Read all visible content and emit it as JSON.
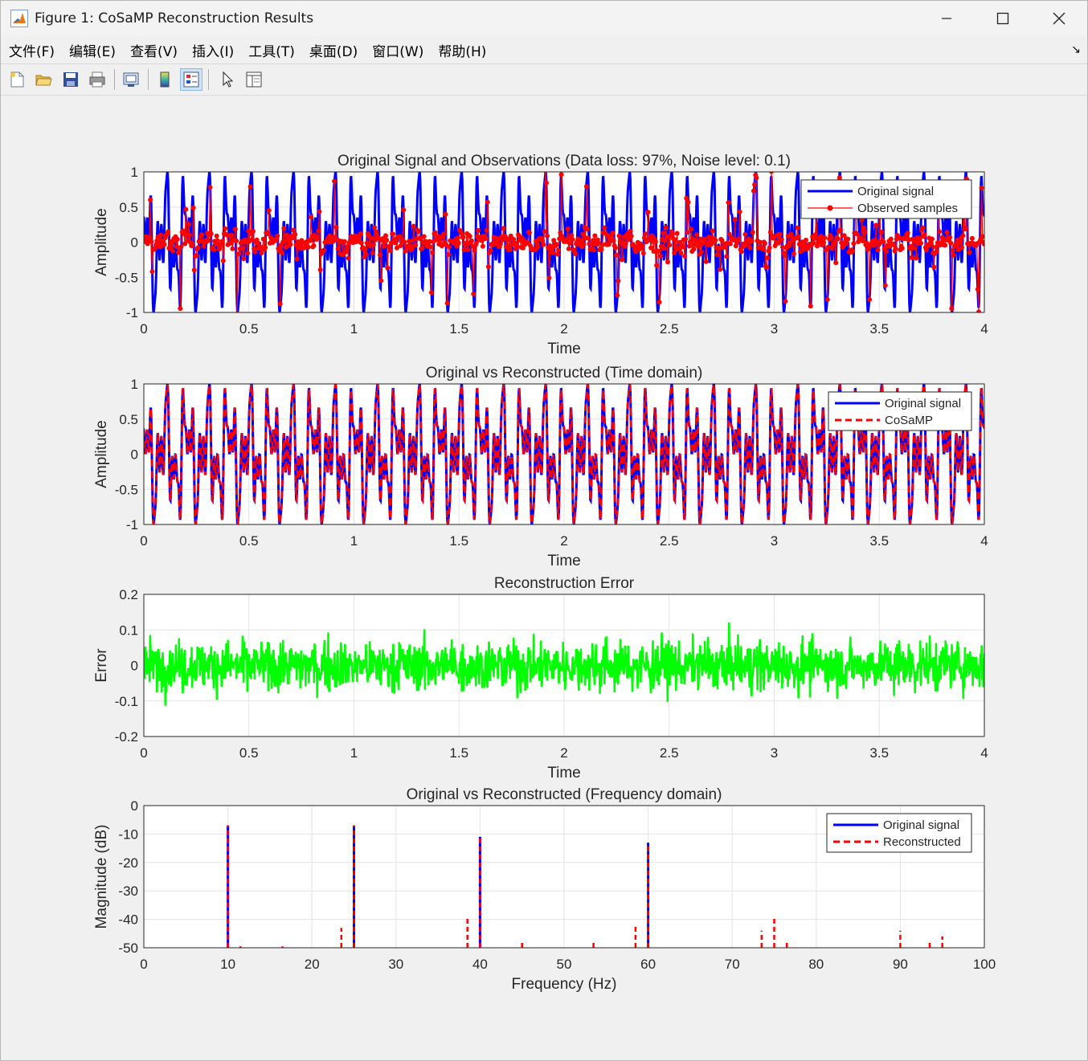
{
  "window": {
    "title": "Figure 1: CoSaMP Reconstruction Results"
  },
  "menu": [
    "文件(F)",
    "编辑(E)",
    "查看(V)",
    "插入(I)",
    "工具(T)",
    "桌面(D)",
    "窗口(W)",
    "帮助(H)"
  ],
  "toolbar": [
    "new-figure-icon",
    "open-file-icon",
    "save-icon",
    "print-icon",
    "link-plot-icon",
    "insert-colorbar-icon",
    "insert-legend-icon",
    "edit-plot-icon",
    "property-inspector-icon"
  ],
  "colors": {
    "original": "#0000ff",
    "observed": "#ff0000",
    "reconstructed": "#ff0000",
    "error": "#00ff00"
  },
  "chart_data": [
    {
      "type": "line",
      "title": "Original Signal and Observations (Data loss: 97%, Noise level: 0.1)",
      "xlabel": "Time",
      "ylabel": "Amplitude",
      "xlim": [
        0,
        4
      ],
      "ylim": [
        -1,
        1
      ],
      "xticks": [
        "0",
        "0.5",
        "1",
        "1.5",
        "2",
        "2.5",
        "3",
        "3.5",
        "4"
      ],
      "yticks": [
        "-1",
        "-0.5",
        "0",
        "0.5",
        "1"
      ],
      "grid": true,
      "legend_position": "top-right",
      "series": [
        {
          "name": "Original signal",
          "color": "#0000ff",
          "style": "solid",
          "components": [
            {
              "freq_hz": 10,
              "amp": 0.45
            },
            {
              "freq_hz": 25,
              "amp": 0.45
            },
            {
              "freq_hz": 40,
              "amp": 0.25
            },
            {
              "freq_hz": 60,
              "amp": 0.2
            }
          ]
        },
        {
          "name": "Observed samples",
          "color": "#ff0000",
          "style": "solid-marker",
          "note_values": "noisy samples of the original signal"
        }
      ]
    },
    {
      "type": "line",
      "title": "Original vs Reconstructed (Time domain)",
      "xlabel": "Time",
      "ylabel": "Amplitude",
      "xlim": [
        0,
        4
      ],
      "ylim": [
        -1,
        1
      ],
      "xticks": [
        "0",
        "0.5",
        "1",
        "1.5",
        "2",
        "2.5",
        "3",
        "3.5",
        "4"
      ],
      "yticks": [
        "-1",
        "-0.5",
        "0",
        "0.5",
        "1"
      ],
      "grid": true,
      "legend_position": "top-right",
      "series": [
        {
          "name": "Original signal",
          "color": "#0000ff",
          "style": "solid"
        },
        {
          "name": "CoSaMP",
          "color": "#ff0000",
          "style": "dashed"
        }
      ]
    },
    {
      "type": "line",
      "title": "Reconstruction Error",
      "xlabel": "Time",
      "ylabel": "Error",
      "xlim": [
        0,
        4
      ],
      "ylim": [
        -0.2,
        0.2
      ],
      "xticks": [
        "0",
        "0.5",
        "1",
        "1.5",
        "2",
        "2.5",
        "3",
        "3.5",
        "4"
      ],
      "yticks": [
        "-0.2",
        "-0.1",
        "0",
        "0.1",
        "0.2"
      ],
      "grid": true,
      "series": [
        {
          "name": "",
          "color": "#00ff00",
          "style": "solid",
          "approx_range": [
            -0.18,
            0.18
          ]
        }
      ]
    },
    {
      "type": "line",
      "title": "Original vs Reconstructed (Frequency domain)",
      "xlabel": "Frequency (Hz)",
      "ylabel": "Magnitude (dB)",
      "xlim": [
        0,
        100
      ],
      "ylim": [
        -50,
        0
      ],
      "xticks": [
        "0",
        "10",
        "20",
        "30",
        "40",
        "50",
        "60",
        "70",
        "80",
        "90",
        "100"
      ],
      "yticks": [
        "-50",
        "-40",
        "-30",
        "-20",
        "-10",
        "0"
      ],
      "grid": true,
      "legend_position": "top-right",
      "series": [
        {
          "name": "Original signal",
          "color": "#0000ff",
          "style": "solid",
          "peaks": [
            {
              "x": 10,
              "y": -7
            },
            {
              "x": 25,
              "y": -7
            },
            {
              "x": 40,
              "y": -11
            },
            {
              "x": 60,
              "y": -13
            }
          ]
        },
        {
          "name": "Reconstructed",
          "color": "#ff0000",
          "style": "dashed",
          "peaks": [
            {
              "x": 10,
              "y": -7
            },
            {
              "x": 25,
              "y": -7
            },
            {
              "x": 40,
              "y": -11
            },
            {
              "x": 60,
              "y": -13
            },
            {
              "x": 23.5,
              "y": -43
            },
            {
              "x": 38.5,
              "y": -39
            },
            {
              "x": 45,
              "y": -48
            },
            {
              "x": 53.5,
              "y": -48
            },
            {
              "x": 58.5,
              "y": -42
            },
            {
              "x": 73.5,
              "y": -44
            },
            {
              "x": 75,
              "y": -39
            },
            {
              "x": 76.5,
              "y": -48
            },
            {
              "x": 90,
              "y": -44
            },
            {
              "x": 93.5,
              "y": -48
            },
            {
              "x": 95,
              "y": -46
            },
            {
              "x": 11.5,
              "y": -49.5
            },
            {
              "x": 16.5,
              "y": -49.5
            }
          ]
        }
      ]
    }
  ]
}
